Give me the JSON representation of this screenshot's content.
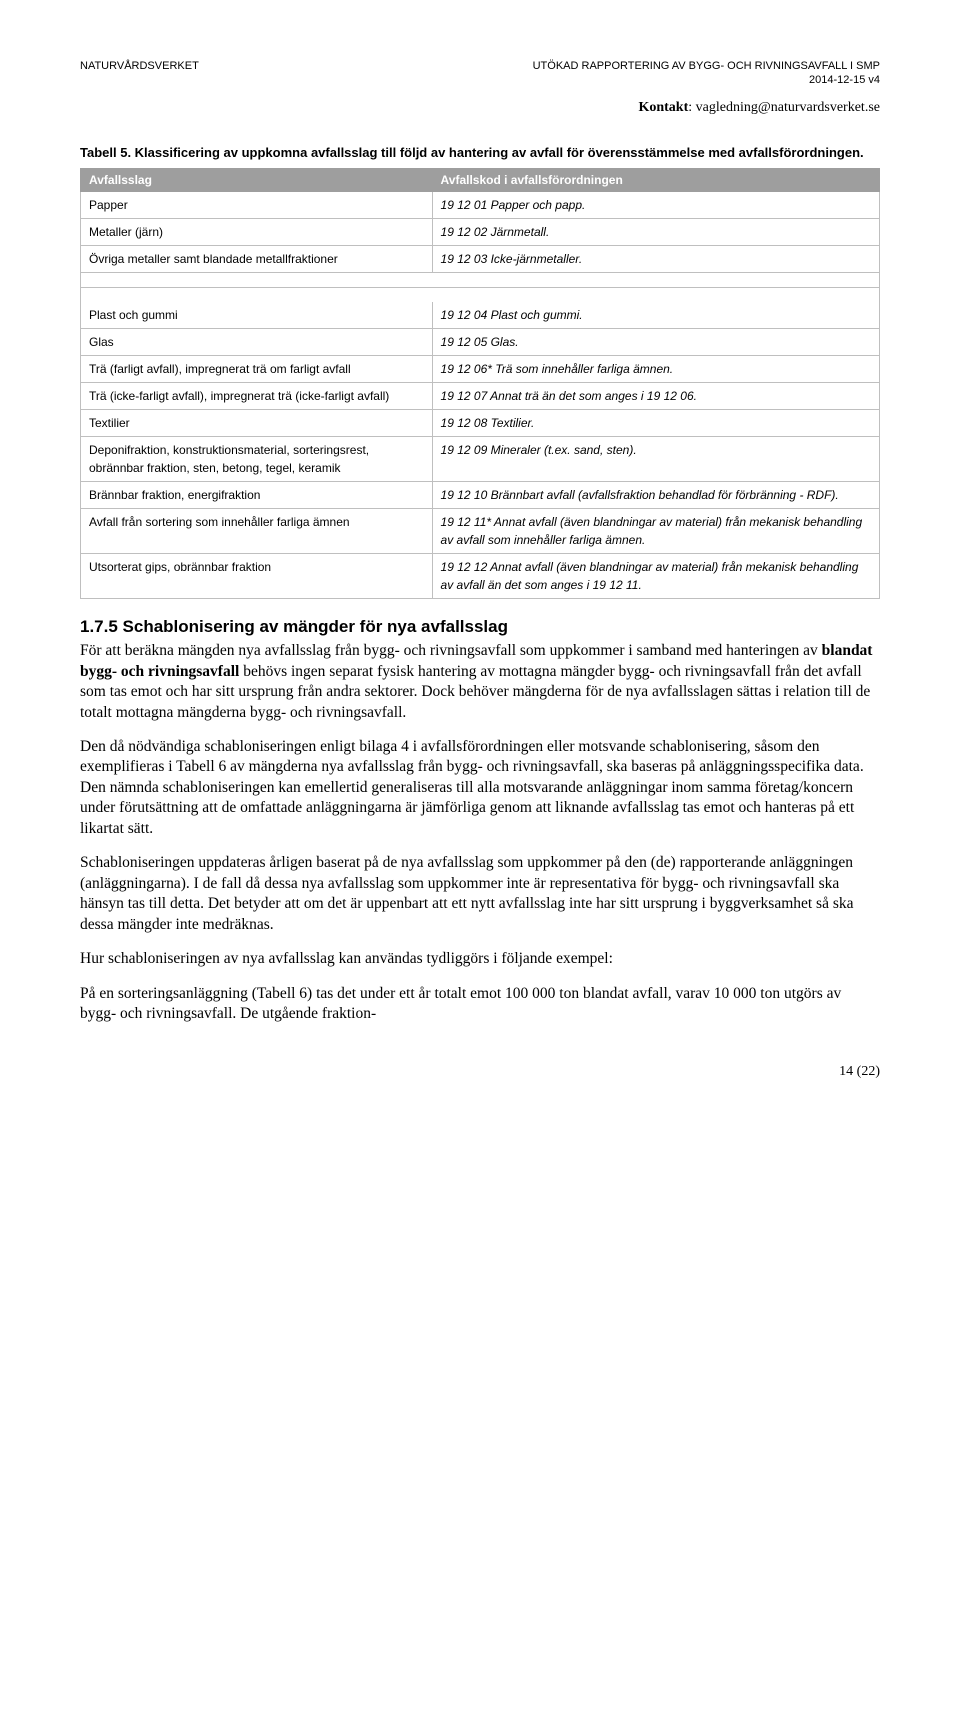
{
  "header": {
    "left": "NATURVÅRDSVERKET",
    "right_line1": "UTÖKAD RAPPORTERING AV BYGG- OCH RIVNINGSAVFALL I SMP",
    "right_line2": "2014-12-15  v4"
  },
  "contact": {
    "label": "Kontakt",
    "value": "vagledning@naturvardsverket.se"
  },
  "caption": "Tabell 5. Klassificering av uppkomna avfallsslag till följd av hantering av avfall för överensstämmelse med avfallsförordningen.",
  "table": {
    "columns": [
      "Avfallsslag",
      "Avfallskod i avfallsförordningen"
    ],
    "block1": [
      [
        "Papper",
        "19 12 01 Papper och papp."
      ],
      [
        "Metaller (järn)",
        "19 12 02 Järnmetall."
      ],
      [
        "Övriga metaller samt blandade metallfraktioner",
        "19 12 03 Icke-järnmetaller."
      ]
    ],
    "block2": [
      [
        "Plast och gummi",
        "19 12 04 Plast och gummi."
      ],
      [
        "Glas",
        "19 12 05 Glas."
      ],
      [
        "Trä (farligt avfall), impregnerat trä om farligt avfall",
        "19 12 06* Trä som innehåller farliga ämnen."
      ],
      [
        "Trä (icke-farligt avfall), impregnerat trä (icke-farligt avfall)",
        "19 12 07 Annat trä än det som anges i 19 12 06."
      ],
      [
        "Textilier",
        "19 12 08 Textilier."
      ],
      [
        "Deponifraktion, konstruktionsmaterial, sorteringsrest, obrännbar fraktion, sten, betong, tegel, keramik",
        "19 12 09 Mineraler (t.ex. sand, sten)."
      ],
      [
        "Brännbar fraktion, energifraktion",
        "19 12 10 Brännbart avfall (avfallsfraktion behandlad för förbränning - RDF)."
      ],
      [
        "Avfall från sortering som innehåller farliga ämnen",
        "19 12 11* Annat avfall (även blandningar av material) från mekanisk behandling av avfall som innehåller farliga ämnen."
      ],
      [
        "Utsorterat gips, obrännbar fraktion",
        "19 12 12 Annat avfall (även blandningar av material) från mekanisk behandling av avfall än det som anges i 19 12 11."
      ]
    ]
  },
  "section_heading": "1.7.5 Schablonisering av mängder för nya avfallsslag",
  "paragraphs": {
    "p1_pre": "För att beräkna mängden nya avfallsslag från bygg- och rivningsavfall som uppkommer i samband med hanteringen av ",
    "p1_bold": "blandat bygg- och rivningsavfall",
    "p1_post": " behövs ingen separat fysisk hantering av mottagna mängder bygg- och rivningsavfall från det avfall som tas emot och har sitt ursprung från andra sektorer. Dock behöver mängderna för de nya avfallsslagen sättas i relation till de totalt mottagna mängderna bygg- och rivningsavfall.",
    "p2": "Den då nödvändiga schabloniseringen enligt bilaga 4 i avfallsförordningen eller motsvande schablonisering, såsom den exemplifieras i Tabell 6 av mängderna nya avfallsslag från bygg- och rivningsavfall, ska baseras på anläggningsspecifika data. Den nämnda schabloniseringen kan emellertid generaliseras till alla motsvarande anläggningar inom samma företag/koncern under förutsättning att de omfattade anläggningarna är jämförliga genom att liknande avfallsslag tas emot och hanteras på ett likartat sätt.",
    "p3": "Schabloniseringen uppdateras årligen baserat på de nya avfallsslag som uppkommer på den (de) rapporterande anläggningen (anläggningarna). I de fall då dessa nya avfallsslag som uppkommer inte är representativa för bygg- och rivningsavfall ska hänsyn tas till detta. Det betyder att om det är uppenbart att ett nytt avfallsslag inte har sitt ursprung i byggverksamhet så ska dessa mängder inte medräknas.",
    "p4": "Hur schabloniseringen av nya avfallsslag kan användas tydliggörs i följande exempel:",
    "p5": "På en sorteringsanläggning (Tabell 6) tas det under ett år totalt emot 100 000 ton blandat avfall, varav 10 000 ton utgörs av bygg- och rivningsavfall. De utgående fraktion-"
  },
  "page_number": "14 (22)"
}
